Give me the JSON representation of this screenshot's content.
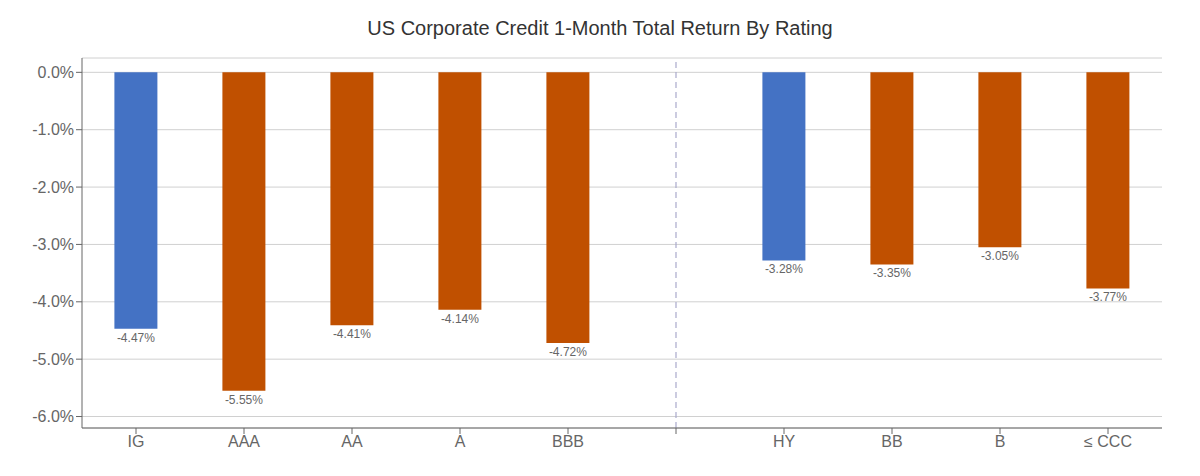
{
  "chart_data": {
    "type": "bar",
    "title": "US Corporate Credit 1-Month Total Return By Rating",
    "categories": [
      "IG",
      "AAA",
      "AA",
      "A",
      "BBB",
      "HY",
      "BB",
      "B",
      "≤ CCC"
    ],
    "values": [
      -4.47,
      -5.55,
      -4.41,
      -4.14,
      -4.72,
      -3.28,
      -3.35,
      -3.05,
      -3.77
    ],
    "value_labels": [
      "-4.47%",
      "-5.55%",
      "-4.41%",
      "-4.14%",
      "-4.72%",
      "-3.28%",
      "-3.35%",
      "-3.05%",
      "-3.77%"
    ],
    "data_labels": true,
    "colors": [
      "#4472C4",
      "#C05000",
      "#C05000",
      "#C05000",
      "#C05000",
      "#4472C4",
      "#C05000",
      "#C05000",
      "#C05000"
    ],
    "ylim": [
      -6.2,
      0.25
    ],
    "yticks": [
      {
        "value": 0.0,
        "label": "0.0%"
      },
      {
        "value": -1.0,
        "label": "-1.0%"
      },
      {
        "value": -2.0,
        "label": "-2.0%"
      },
      {
        "value": -3.0,
        "label": "-3.0%"
      },
      {
        "value": -4.0,
        "label": "-4.0%"
      },
      {
        "value": -5.0,
        "label": "-5.0%"
      },
      {
        "value": -6.0,
        "label": "-6.0%"
      }
    ],
    "grid": true
  }
}
